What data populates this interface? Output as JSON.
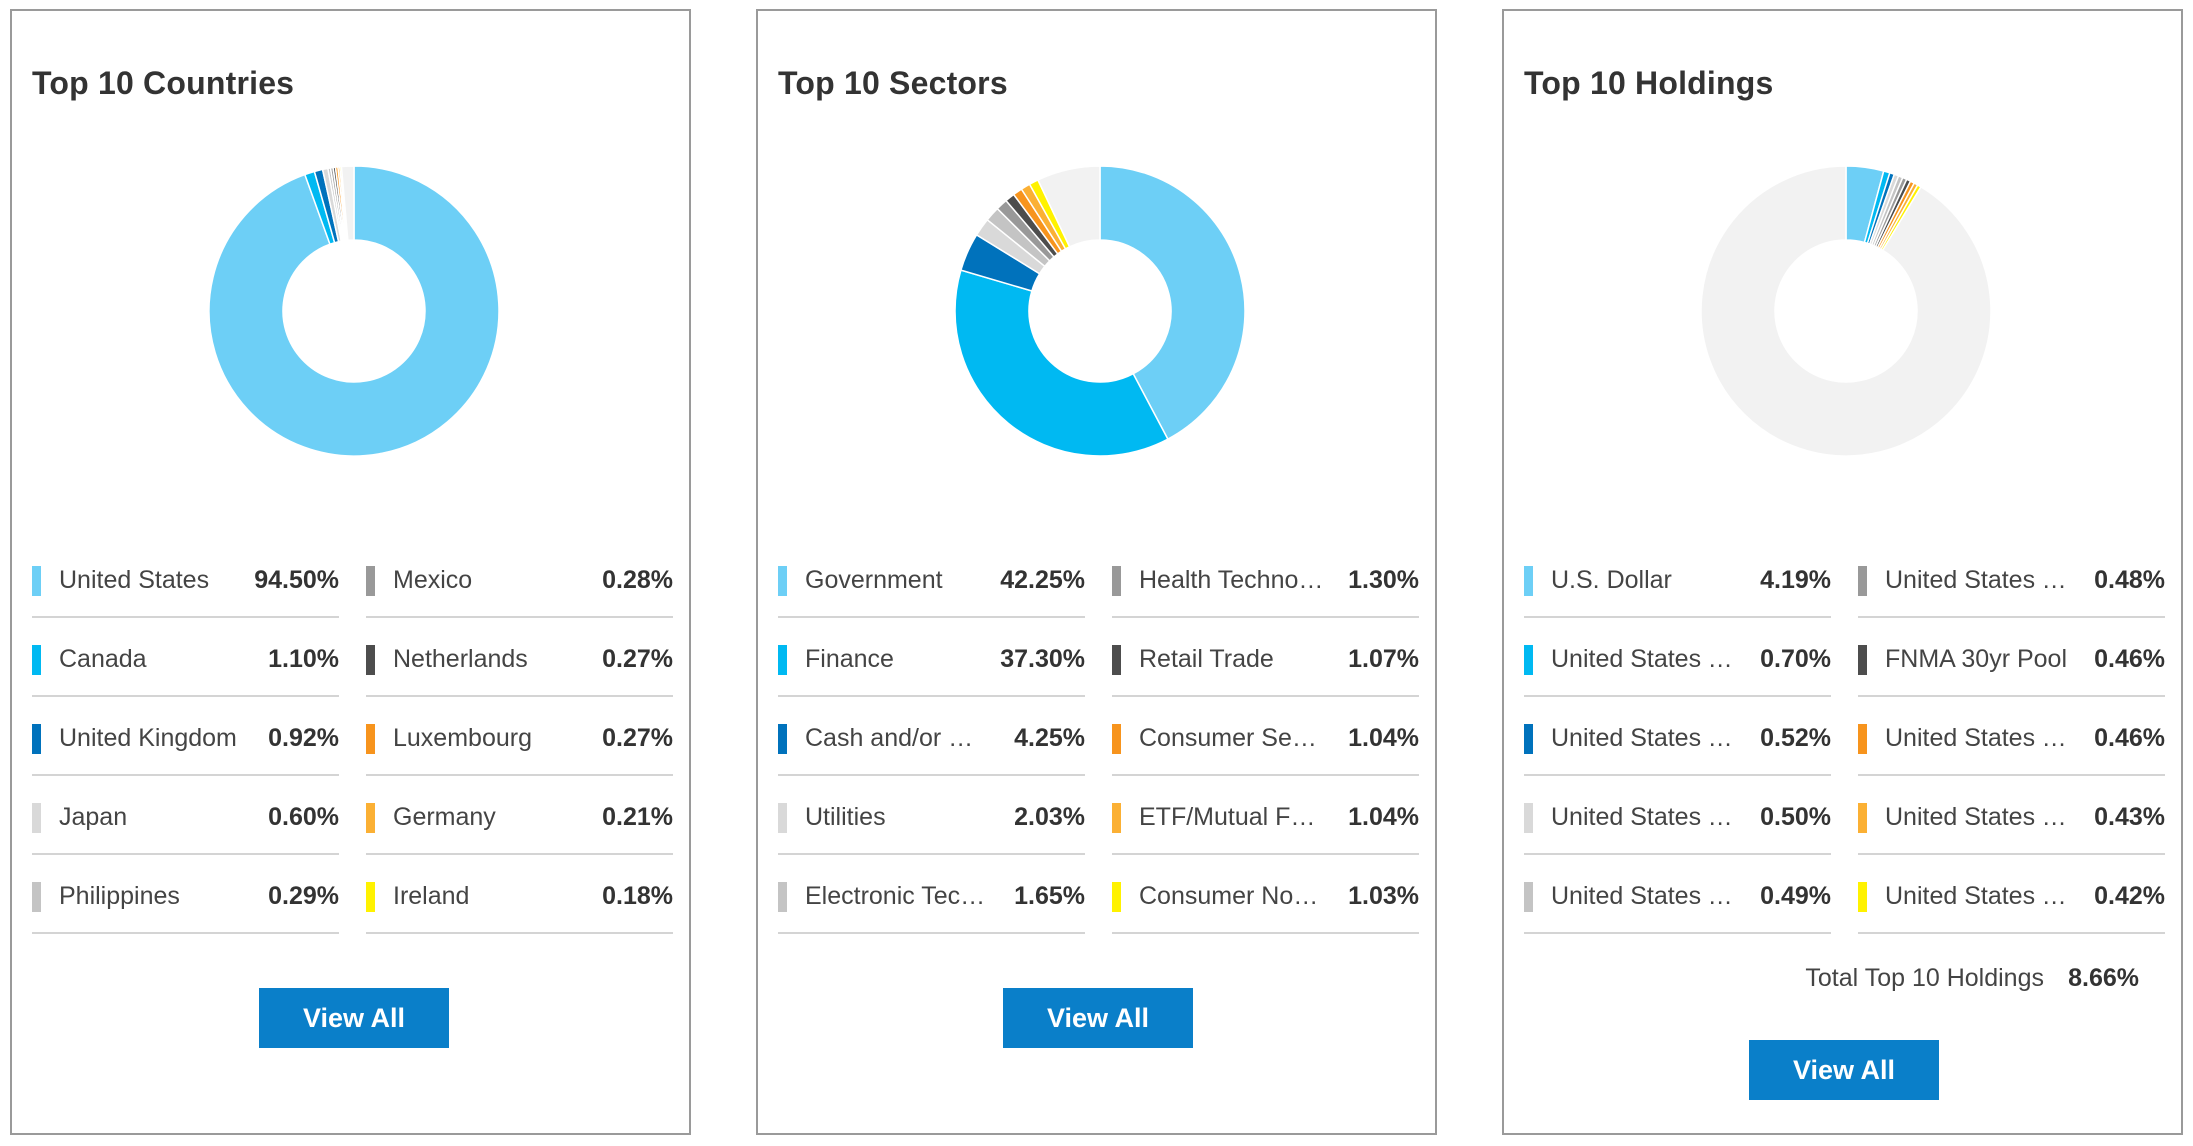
{
  "chart_data": [
    {
      "type": "pie",
      "title": "Top 10 Countries",
      "slices": [
        {
          "label": "United States",
          "value": 94.5,
          "value_text": "94.50%",
          "color": "#6dcff6"
        },
        {
          "label": "Canada",
          "value": 1.1,
          "value_text": "1.10%",
          "color": "#00b9f2"
        },
        {
          "label": "United Kingdom",
          "value": 0.92,
          "value_text": "0.92%",
          "color": "#0072bc"
        },
        {
          "label": "Japan",
          "value": 0.6,
          "value_text": "0.60%",
          "color": "#d9d9d9"
        },
        {
          "label": "Philippines",
          "value": 0.29,
          "value_text": "0.29%",
          "color": "#c4c4c4"
        },
        {
          "label": "Mexico",
          "value": 0.28,
          "value_text": "0.28%",
          "color": "#999999"
        },
        {
          "label": "Netherlands",
          "value": 0.27,
          "value_text": "0.27%",
          "color": "#4d4d4d"
        },
        {
          "label": "Luxembourg",
          "value": 0.27,
          "value_text": "0.27%",
          "color": "#f7941d"
        },
        {
          "label": "Germany",
          "value": 0.21,
          "value_text": "0.21%",
          "color": "#fbb034"
        },
        {
          "label": "Ireland",
          "value": 0.18,
          "value_text": "0.18%",
          "color": "#fff200"
        }
      ],
      "remainder_color": "#f2f2f2",
      "view_all_label": "View All"
    },
    {
      "type": "pie",
      "title": "Top 10 Sectors",
      "slices": [
        {
          "label": "Government",
          "value": 42.25,
          "value_text": "42.25%",
          "color": "#6dcff6"
        },
        {
          "label": "Finance",
          "value": 37.3,
          "value_text": "37.30%",
          "color": "#00b9f2"
        },
        {
          "label": "Cash and/or Derivatives",
          "value": 4.25,
          "value_text": "4.25%",
          "color": "#0072bc"
        },
        {
          "label": "Utilities",
          "value": 2.03,
          "value_text": "2.03%",
          "color": "#d9d9d9"
        },
        {
          "label": "Electronic Technology",
          "value": 1.65,
          "value_text": "1.65%",
          "color": "#c4c4c4"
        },
        {
          "label": "Health Technology",
          "value": 1.3,
          "value_text": "1.30%",
          "color": "#999999"
        },
        {
          "label": "Retail Trade",
          "value": 1.07,
          "value_text": "1.07%",
          "color": "#4d4d4d"
        },
        {
          "label": "Consumer Services",
          "value": 1.04,
          "value_text": "1.04%",
          "color": "#f7941d"
        },
        {
          "label": "ETF/Mutual Funds",
          "value": 1.04,
          "value_text": "1.04%",
          "color": "#fbb034"
        },
        {
          "label": "Consumer Non-Durables",
          "value": 1.03,
          "value_text": "1.03%",
          "color": "#fff200"
        }
      ],
      "remainder_color": "#f2f2f2",
      "view_all_label": "View All"
    },
    {
      "type": "pie",
      "title": "Top 10 Holdings",
      "slices": [
        {
          "label": "U.S. Dollar",
          "value": 4.19,
          "value_text": "4.19%",
          "color": "#6dcff6"
        },
        {
          "label": "United States Treasury",
          "value": 0.7,
          "value_text": "0.70%",
          "color": "#00b9f2"
        },
        {
          "label": "United States Treasury",
          "value": 0.52,
          "value_text": "0.52%",
          "color": "#0072bc"
        },
        {
          "label": "United States Treasury",
          "value": 0.5,
          "value_text": "0.50%",
          "color": "#d9d9d9"
        },
        {
          "label": "United States Treasury",
          "value": 0.49,
          "value_text": "0.49%",
          "color": "#c4c4c4"
        },
        {
          "label": "United States Treasury",
          "value": 0.48,
          "value_text": "0.48%",
          "color": "#999999"
        },
        {
          "label": "FNMA 30yr Pool",
          "value": 0.46,
          "value_text": "0.46%",
          "color": "#4d4d4d"
        },
        {
          "label": "United States Treasury",
          "value": 0.46,
          "value_text": "0.46%",
          "color": "#f7941d"
        },
        {
          "label": "United States Treasury",
          "value": 0.43,
          "value_text": "0.43%",
          "color": "#fbb034"
        },
        {
          "label": "United States Treasury",
          "value": 0.42,
          "value_text": "0.42%",
          "color": "#fff200"
        }
      ],
      "remainder_color": "#f2f2f2",
      "total": {
        "label": "Total Top 10 Holdings",
        "value": 8.66,
        "value_text": "8.66%"
      },
      "view_all_label": "View All"
    }
  ]
}
